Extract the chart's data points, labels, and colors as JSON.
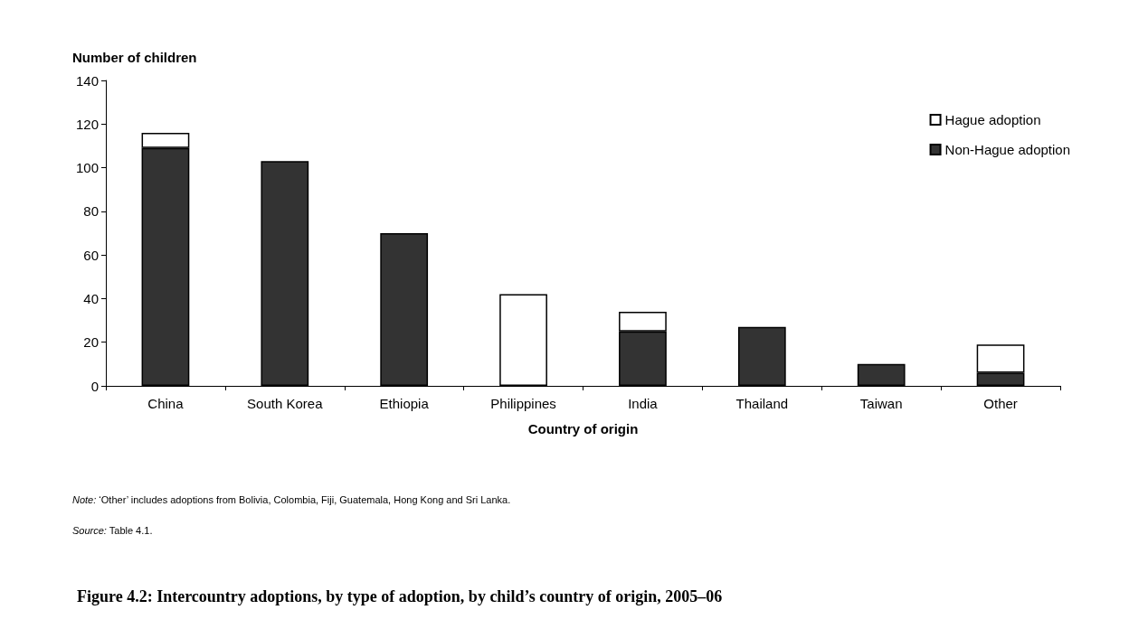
{
  "chart_data": {
    "type": "bar",
    "title": "Figure 4.2: Intercountry adoptions, by type of adoption, by child’s country of origin, 2005–06",
    "xlabel": "Country of origin",
    "ylabel": "Number of children",
    "categories": [
      "China",
      "South Korea",
      "Ethiopia",
      "Philippines",
      "India",
      "Thailand",
      "Taiwan",
      "Other"
    ],
    "series": [
      {
        "name": "Non-Hague adoption",
        "color": "#333333",
        "values": [
          109,
          103,
          70,
          0,
          25,
          27,
          10,
          6
        ]
      },
      {
        "name": "Hague adoption",
        "color": "#ffffff",
        "values": [
          7,
          0,
          0,
          42,
          9,
          0,
          0,
          13
        ]
      }
    ],
    "stacked": true,
    "ylim": [
      0,
      140
    ],
    "yticks": [
      0,
      20,
      40,
      60,
      80,
      100,
      120,
      140
    ],
    "grid": false,
    "legend": "top right",
    "annotations": [
      "Note: ‘Other’ includes adoptions from Bolivia, Colombia, Fiji, Guatemala, Hong Kong and Sri Lanka.",
      "Source: Table 4.1."
    ]
  }
}
